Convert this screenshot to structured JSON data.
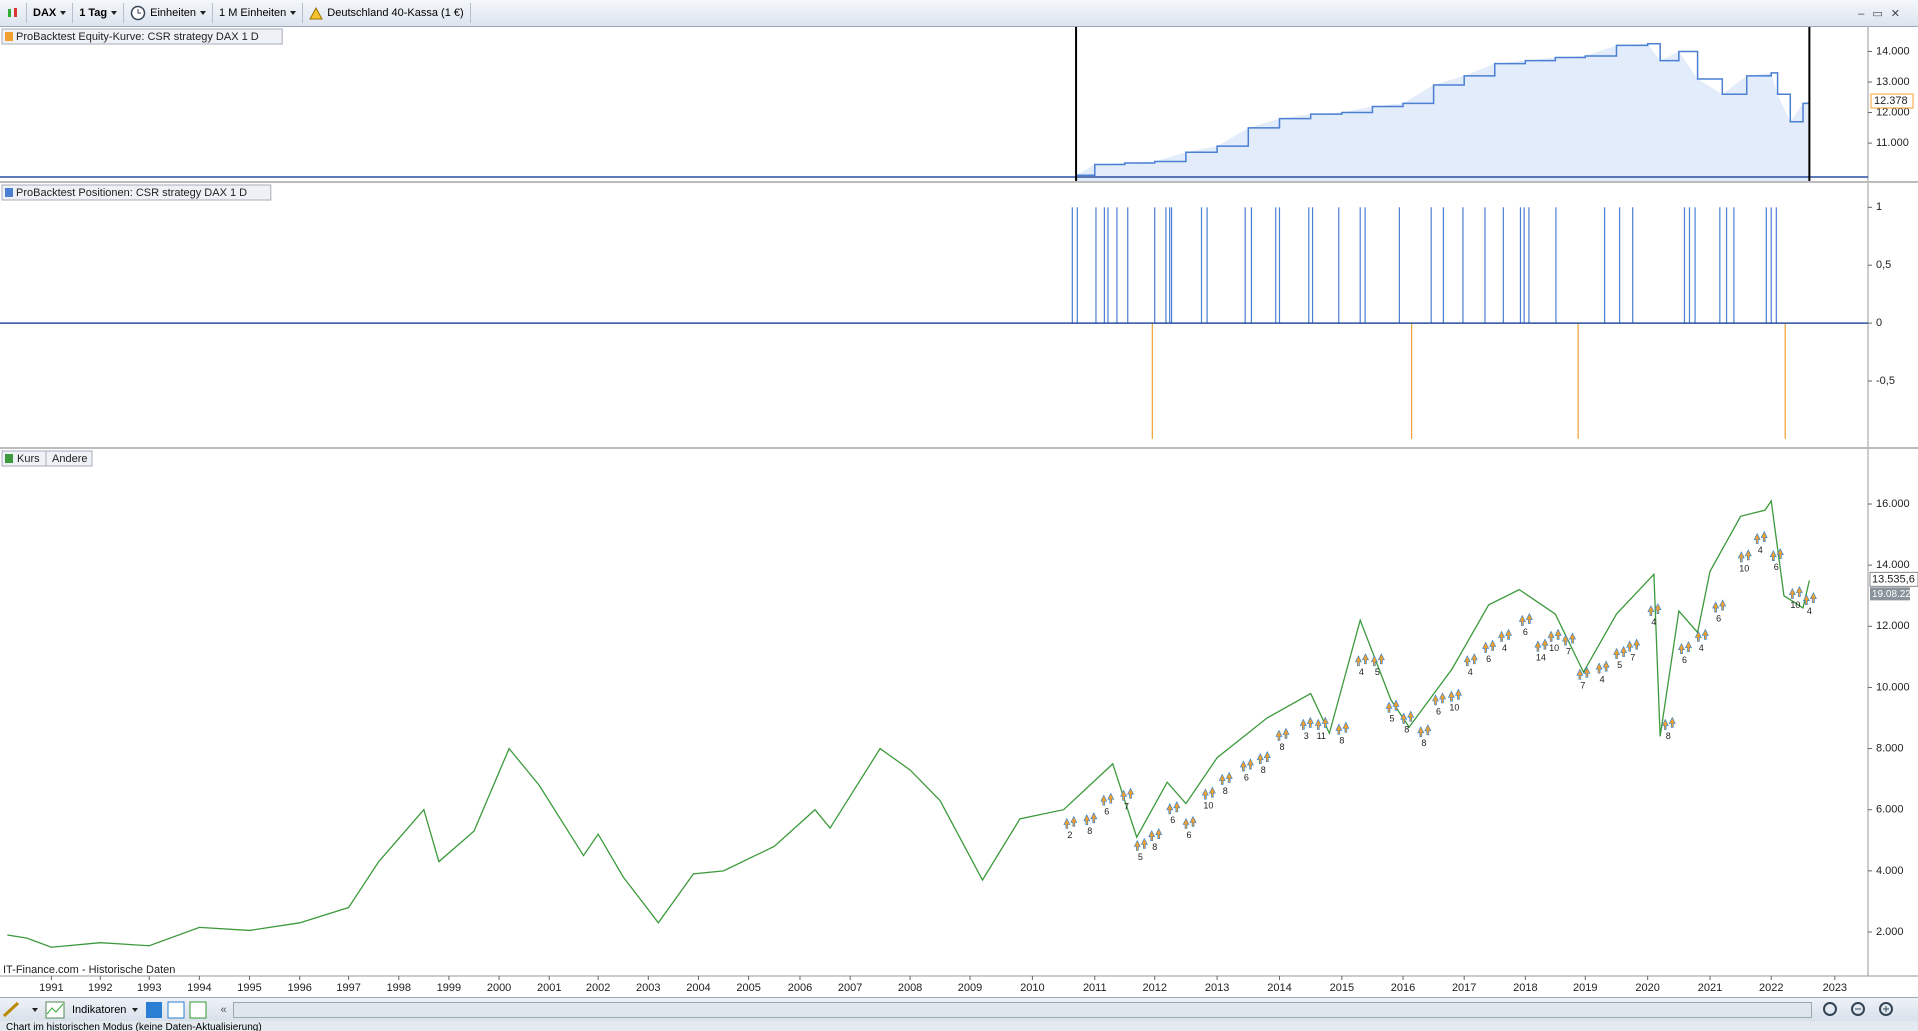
{
  "toolbar": {
    "symbol": "DAX",
    "interval": "1 Tag",
    "units": "Einheiten",
    "amount": "1 M Einheiten",
    "instrument": "Deutschland 40-Kassa (1 €)"
  },
  "chart_data": [
    {
      "type": "area",
      "title": "ProBacktest Equity-Kurve: CSR strategy DAX 1 D",
      "x": [
        2010.7,
        2011.0,
        2011.5,
        2012.0,
        2012.5,
        2013.0,
        2013.5,
        2014.0,
        2014.5,
        2015.0,
        2015.5,
        2016.0,
        2016.5,
        2017.0,
        2017.5,
        2018.0,
        2018.5,
        2019.0,
        2019.5,
        2020.0,
        2020.2,
        2020.5,
        2020.8,
        2021.2,
        2021.6,
        2022.0,
        2022.1,
        2022.3,
        2022.5,
        2022.6
      ],
      "values": [
        9950,
        10300,
        10350,
        10400,
        10700,
        10900,
        11500,
        11800,
        11950,
        12000,
        12200,
        12300,
        12900,
        13200,
        13600,
        13700,
        13800,
        13850,
        14200,
        14250,
        13700,
        14000,
        13100,
        12600,
        13200,
        13300,
        12600,
        11700,
        12300,
        12378
      ],
      "color": "#4a7fd4",
      "fill": "#e3ecfa",
      "ylim": [
        9760,
        14800
      ],
      "yticks": [
        {
          "value": 11000,
          "label": "11.000"
        },
        {
          "value": 12000,
          "label": "12.000"
        },
        {
          "value": 13000,
          "label": "13.000"
        },
        {
          "value": 14000,
          "label": "14.000"
        }
      ],
      "last_value": {
        "value": 12378,
        "label": "12.378"
      },
      "last_color": "#f0a030"
    },
    {
      "type": "bar",
      "title": "ProBacktest Positionen: CSR strategy DAX 1 D",
      "x": [
        2010.64,
        2010.72,
        2011.02,
        2011.16,
        2011.22,
        2011.37,
        2011.55,
        2011.96,
        2012.0,
        2012.18,
        2012.24,
        2012.27,
        2012.75,
        2012.84,
        2013.45,
        2013.55,
        2013.94,
        2014.0,
        2014.47,
        2014.53,
        2014.95,
        2015.3,
        2015.38,
        2015.94,
        2016.14,
        2016.46,
        2016.66,
        2016.98,
        2017.34,
        2017.64,
        2017.92,
        2017.98,
        2018.06,
        2018.51,
        2018.88,
        2019.31,
        2019.55,
        2019.76,
        2020.59,
        2020.67,
        2020.76,
        2021.16,
        2021.27,
        2021.39,
        2021.92,
        2022.0,
        2022.08,
        2022.22
      ],
      "values": [
        1,
        1,
        1,
        1,
        1,
        1,
        1,
        -1,
        1,
        1,
        1,
        1,
        1,
        1,
        1,
        1,
        1,
        1,
        1,
        1,
        1,
        1,
        1,
        1,
        -1,
        1,
        1,
        1,
        1,
        1,
        1,
        1,
        1,
        1,
        -1,
        1,
        1,
        1,
        1,
        1,
        1,
        1,
        1,
        1,
        1,
        1,
        1,
        -1
      ],
      "positive_color": "#4a7fd4",
      "negative_color": "#f0a030",
      "ylim": [
        -1.07,
        1.21
      ],
      "yticks": [
        1,
        {
          "value": 0.5,
          "label": "0,5"
        },
        0,
        {
          "value": -0.5,
          "label": "-0,5"
        }
      ]
    },
    {
      "type": "line",
      "legend": [
        "Kurs",
        "Andere"
      ],
      "x": [
        1990.1,
        1990.5,
        1991.0,
        1992.0,
        1993.0,
        1994.0,
        1995.0,
        1996.0,
        1997.0,
        1997.6,
        1998.5,
        1998.8,
        1999.5,
        2000.2,
        2000.8,
        2001.7,
        2002.0,
        2002.5,
        2003.2,
        2003.9,
        2004.5,
        2005.5,
        2006.3,
        2006.6,
        2007.5,
        2008.0,
        2008.5,
        2009.2,
        2009.8,
        2010.5,
        2011.3,
        2011.7,
        2012.2,
        2012.5,
        2013.0,
        2013.8,
        2014.5,
        2014.8,
        2015.3,
        2015.8,
        2016.1,
        2016.8,
        2017.4,
        2017.9,
        2018.5,
        2018.97,
        2019.5,
        2020.1,
        2020.2,
        2020.5,
        2020.8,
        2021.0,
        2021.5,
        2021.9,
        2022.0,
        2022.2,
        2022.5,
        2022.6
      ],
      "values": [
        1900,
        1800,
        1500,
        1650,
        1550,
        2150,
        2050,
        2300,
        2800,
        4300,
        6000,
        4300,
        5300,
        8000,
        6800,
        4500,
        5200,
        3800,
        2300,
        3900,
        4000,
        4800,
        6000,
        5400,
        8000,
        7300,
        6300,
        3700,
        5700,
        6000,
        7500,
        5100,
        6900,
        6200,
        7700,
        9000,
        9800,
        8500,
        12200,
        9600,
        8700,
        10600,
        12700,
        13200,
        12400,
        10500,
        12400,
        13700,
        8400,
        12500,
        11800,
        13800,
        15600,
        15800,
        16100,
        13000,
        12600,
        13500
      ],
      "color": "#3c9a3c",
      "ylim": [
        560,
        17800
      ],
      "yticks": [
        {
          "value": 2000,
          "label": "2.000"
        },
        {
          "value": 4000,
          "label": "4.000"
        },
        {
          "value": 6000,
          "label": "6.000"
        },
        {
          "value": 8000,
          "label": "8.000"
        },
        {
          "value": 10000,
          "label": "10.000"
        },
        {
          "value": 12000,
          "label": "12.000"
        },
        {
          "value": 14000,
          "label": "14.000"
        },
        {
          "value": 16000,
          "label": "16.000"
        }
      ],
      "xlim": [
        1990.0,
        2023.55
      ],
      "xticks": [
        1991,
        1992,
        1993,
        1994,
        1995,
        1996,
        1997,
        1998,
        1999,
        2000,
        2001,
        2002,
        2003,
        2004,
        2005,
        2006,
        2007,
        2008,
        2009,
        2010,
        2011,
        2012,
        2013,
        2014,
        2015,
        2016,
        2017,
        2018,
        2019,
        2020,
        2021,
        2022,
        2023
      ],
      "last_value": {
        "value": 13535.6,
        "label": "13.535,6"
      },
      "last_date": "19.08.22",
      "trades": [
        {
          "x": 2010.6,
          "y": 5320,
          "label": "2"
        },
        {
          "x": 2010.92,
          "y": 5440,
          "label": "8"
        },
        {
          "x": 2011.2,
          "y": 6080,
          "label": "6"
        },
        {
          "x": 2011.53,
          "y": 6240,
          "label": "7"
        },
        {
          "x": 2011.76,
          "y": 4600,
          "label": "5"
        },
        {
          "x": 2012.0,
          "y": 4920,
          "label": "8"
        },
        {
          "x": 2012.29,
          "y": 5800,
          "label": "6"
        },
        {
          "x": 2012.55,
          "y": 5320,
          "label": "6"
        },
        {
          "x": 2012.86,
          "y": 6280,
          "label": "10"
        },
        {
          "x": 2013.13,
          "y": 6760,
          "label": "8"
        },
        {
          "x": 2013.47,
          "y": 7200,
          "label": "6"
        },
        {
          "x": 2013.74,
          "y": 7440,
          "label": "8"
        },
        {
          "x": 2014.04,
          "y": 8200,
          "label": "8"
        },
        {
          "x": 2014.43,
          "y": 8560,
          "label": "3"
        },
        {
          "x": 2014.67,
          "y": 8560,
          "label": "11"
        },
        {
          "x": 2015.0,
          "y": 8400,
          "label": "8"
        },
        {
          "x": 2015.32,
          "y": 10640,
          "label": "4"
        },
        {
          "x": 2015.58,
          "y": 10640,
          "label": "5"
        },
        {
          "x": 2015.82,
          "y": 9120,
          "label": "5"
        },
        {
          "x": 2016.06,
          "y": 8760,
          "label": "8"
        },
        {
          "x": 2016.34,
          "y": 8320,
          "label": "8"
        },
        {
          "x": 2016.58,
          "y": 9360,
          "label": "6"
        },
        {
          "x": 2016.84,
          "y": 9480,
          "label": "10"
        },
        {
          "x": 2017.1,
          "y": 10640,
          "label": "4"
        },
        {
          "x": 2017.4,
          "y": 11080,
          "label": "6"
        },
        {
          "x": 2017.66,
          "y": 11440,
          "label": "4"
        },
        {
          "x": 2018.0,
          "y": 11960,
          "label": "6"
        },
        {
          "x": 2018.26,
          "y": 11120,
          "label": "14"
        },
        {
          "x": 2018.48,
          "y": 11440,
          "label": "10"
        },
        {
          "x": 2018.72,
          "y": 11320,
          "label": "7"
        },
        {
          "x": 2018.96,
          "y": 10200,
          "label": "7"
        },
        {
          "x": 2019.27,
          "y": 10400,
          "label": "4"
        },
        {
          "x": 2019.55,
          "y": 10880,
          "label": "5"
        },
        {
          "x": 2019.76,
          "y": 11120,
          "label": "7"
        },
        {
          "x": 2020.1,
          "y": 12280,
          "label": "4"
        },
        {
          "x": 2020.33,
          "y": 8560,
          "label": "8"
        },
        {
          "x": 2020.59,
          "y": 11040,
          "label": "6"
        },
        {
          "x": 2020.86,
          "y": 11440,
          "label": "4"
        },
        {
          "x": 2021.14,
          "y": 12400,
          "label": "6"
        },
        {
          "x": 2021.56,
          "y": 14040,
          "label": "10"
        },
        {
          "x": 2021.82,
          "y": 14640,
          "label": "4"
        },
        {
          "x": 2022.08,
          "y": 14080,
          "label": "6"
        },
        {
          "x": 2022.38,
          "y": 12840,
          "label": "10"
        },
        {
          "x": 2022.6,
          "y": 12640,
          "label": "4"
        }
      ]
    }
  ],
  "source": "IT-Finance.com - Historische Daten",
  "bottom_toolbar": {
    "indicators": "Indikatoren"
  },
  "status": "Chart im historischen Modus (keine Daten-Aktualisierung)"
}
